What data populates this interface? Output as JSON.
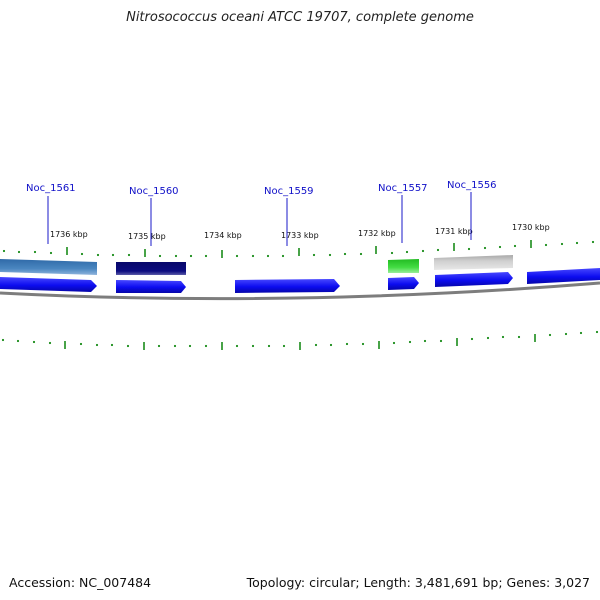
{
  "title": "Nitrosococcus oceani ATCC 19707, complete genome",
  "footer": {
    "accession": "Accession: NC_007484",
    "summary": "Topology: circular; Length: 3,481,691 bp; Genes: 3,027"
  },
  "scale_ticks": [
    {
      "label": "1736 kbp"
    },
    {
      "label": "1735 kbp"
    },
    {
      "label": "1734 kbp"
    },
    {
      "label": "1733 kbp"
    },
    {
      "label": "1732 kbp"
    },
    {
      "label": "1731 kbp"
    },
    {
      "label": "1730 kbp"
    }
  ],
  "gene_labels": [
    {
      "name": "Noc_1561"
    },
    {
      "name": "Noc_1560"
    },
    {
      "name": "Noc_1559"
    },
    {
      "name": "Noc_1557"
    },
    {
      "name": "Noc_1556"
    }
  ],
  "colors": {
    "cds_strand": "#1a1aff",
    "feature_steelblue": "#4a7fb5",
    "feature_navy": "#0c0c7a",
    "feature_green": "#33cc33",
    "feature_gray": "#c0c0c0",
    "backbone": "#888888",
    "tick": "#1a8c1a",
    "label_line": "#1a1ac8"
  }
}
